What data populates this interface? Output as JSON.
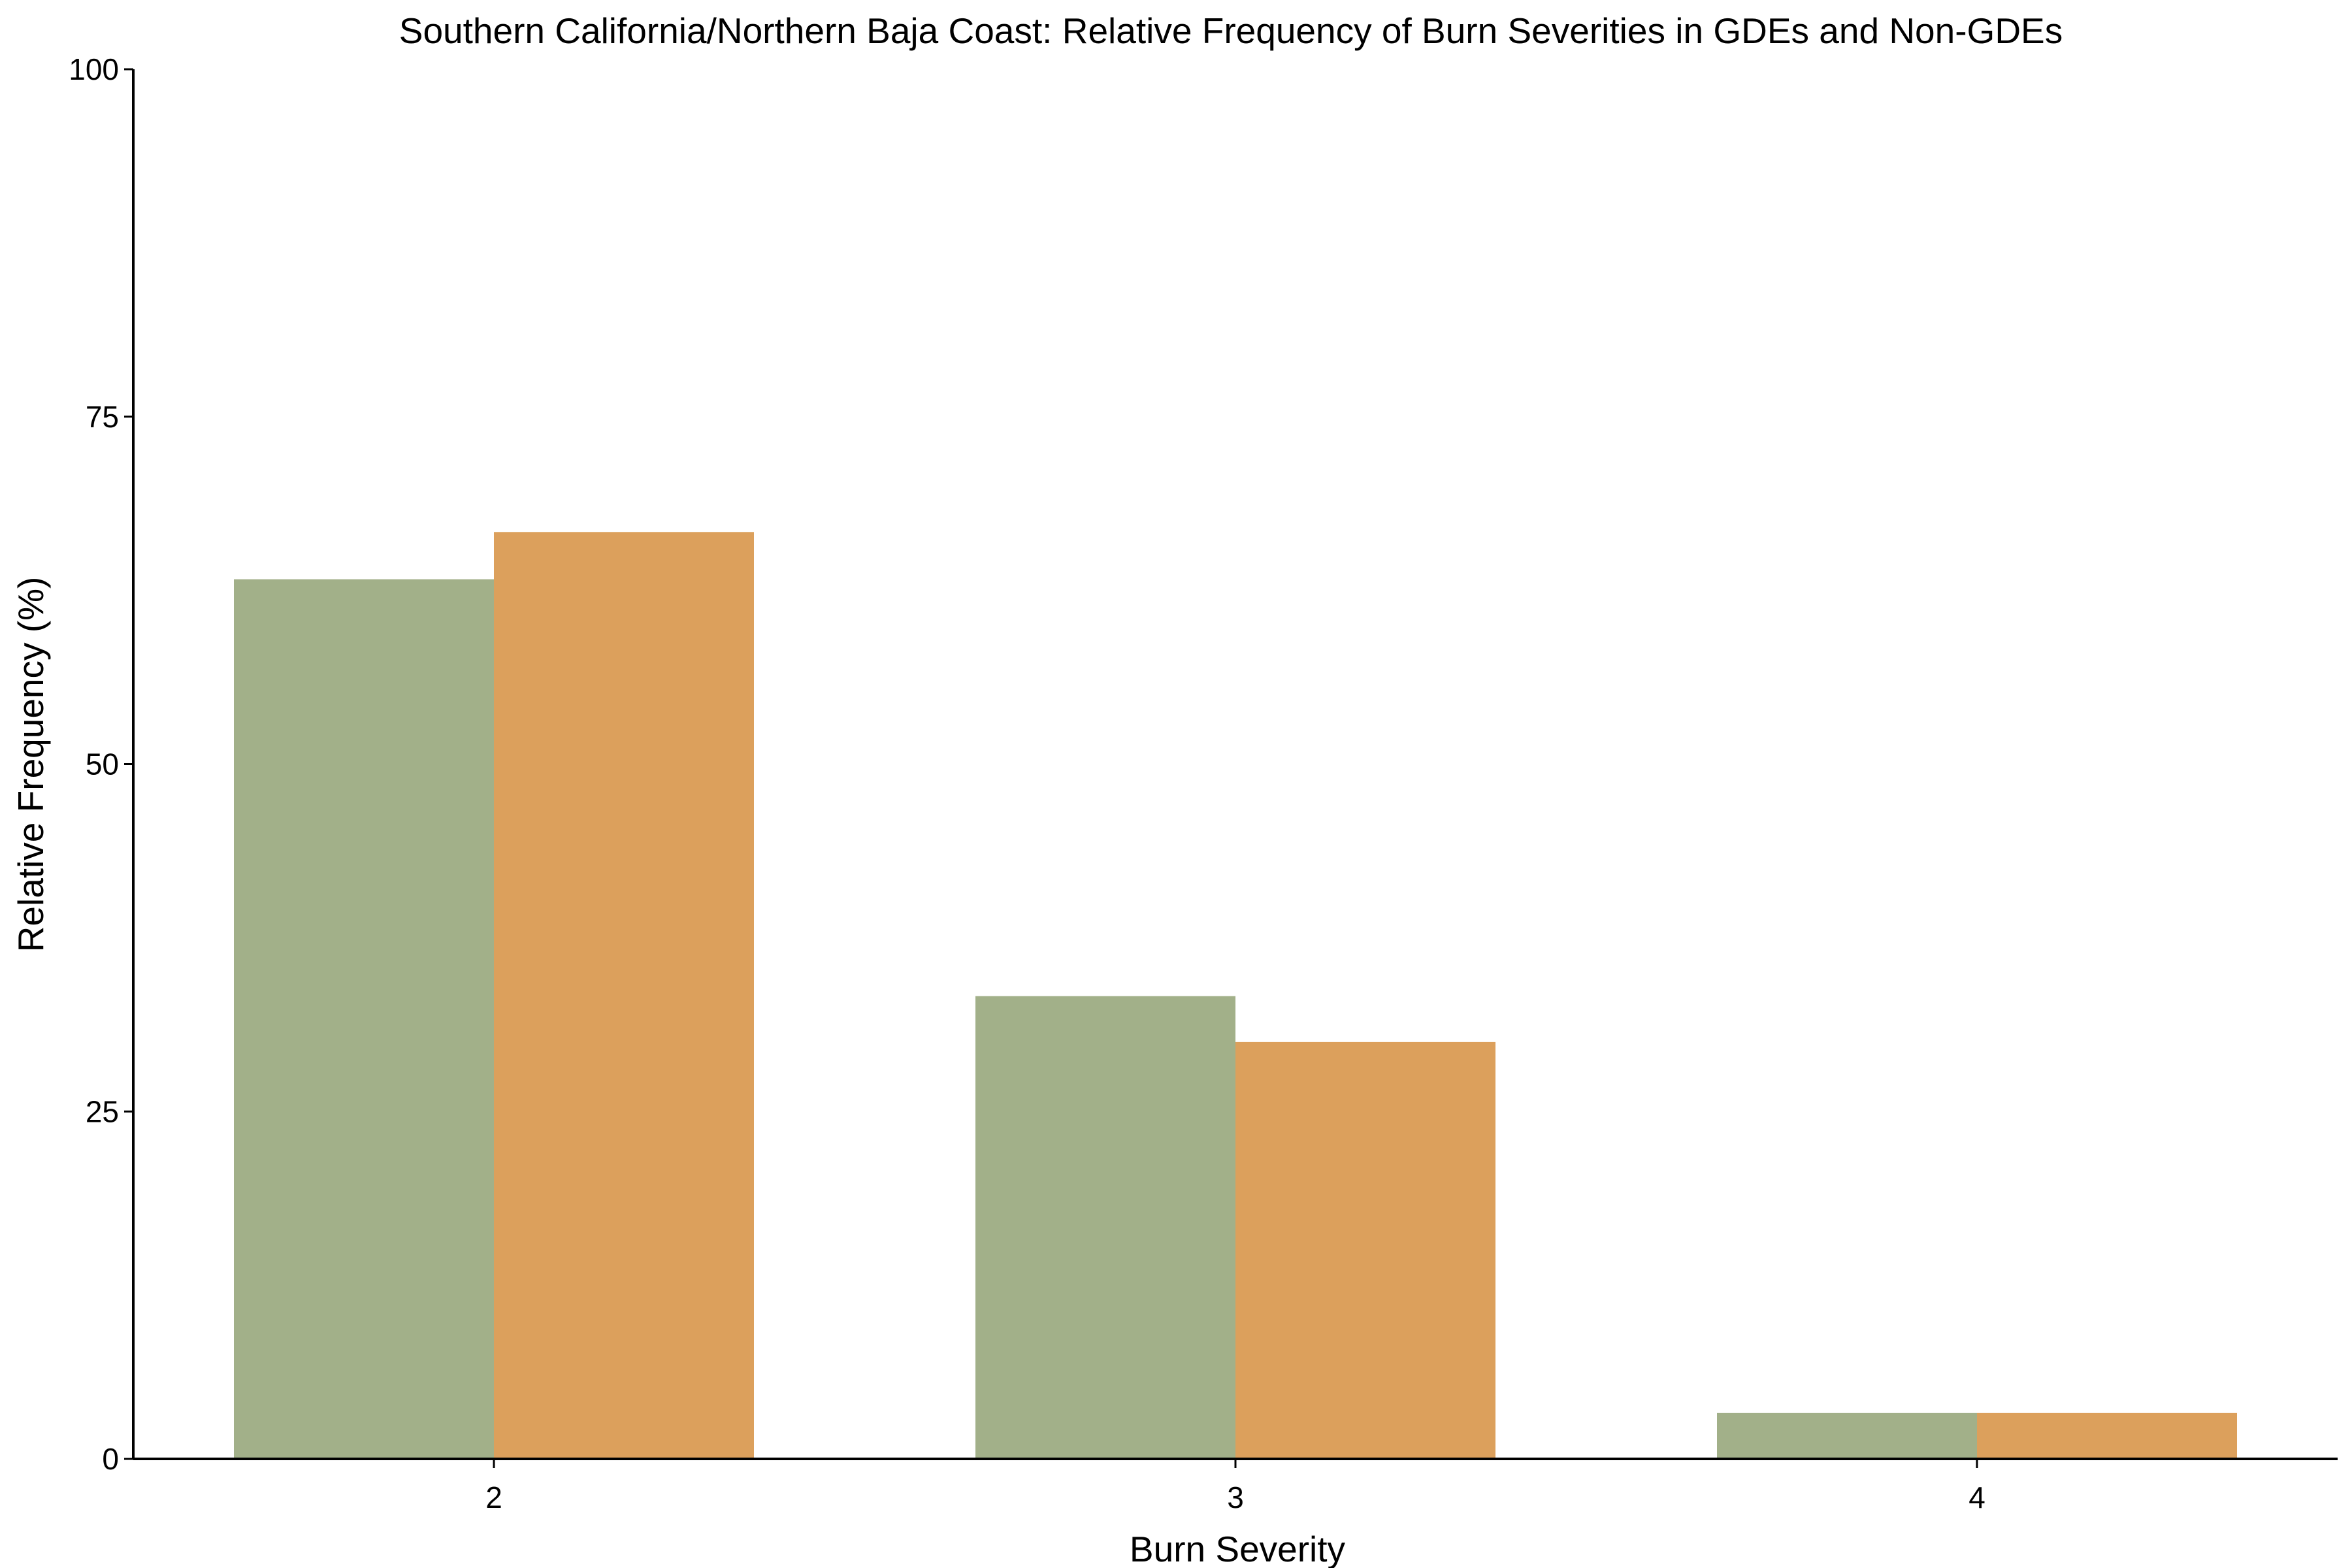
{
  "chart_data": {
    "type": "bar",
    "title": "Southern California/Northern Baja Coast: Relative Frequency of Burn Severities in GDEs and Non-GDEs",
    "xlabel": "Burn Severity",
    "ylabel": "Relative Frequency (%)",
    "categories": [
      "2",
      "3",
      "4"
    ],
    "ylim": [
      0,
      100
    ],
    "yticks": [
      "0",
      "25",
      "50",
      "75",
      "100"
    ],
    "series": [
      {
        "values": [
          63.3,
          33.3,
          3.3
        ],
        "color": "#a2b089"
      },
      {
        "values": [
          66.7,
          30.0,
          3.3
        ],
        "color": "#dca05c"
      }
    ],
    "grid": false,
    "legend": "none"
  }
}
